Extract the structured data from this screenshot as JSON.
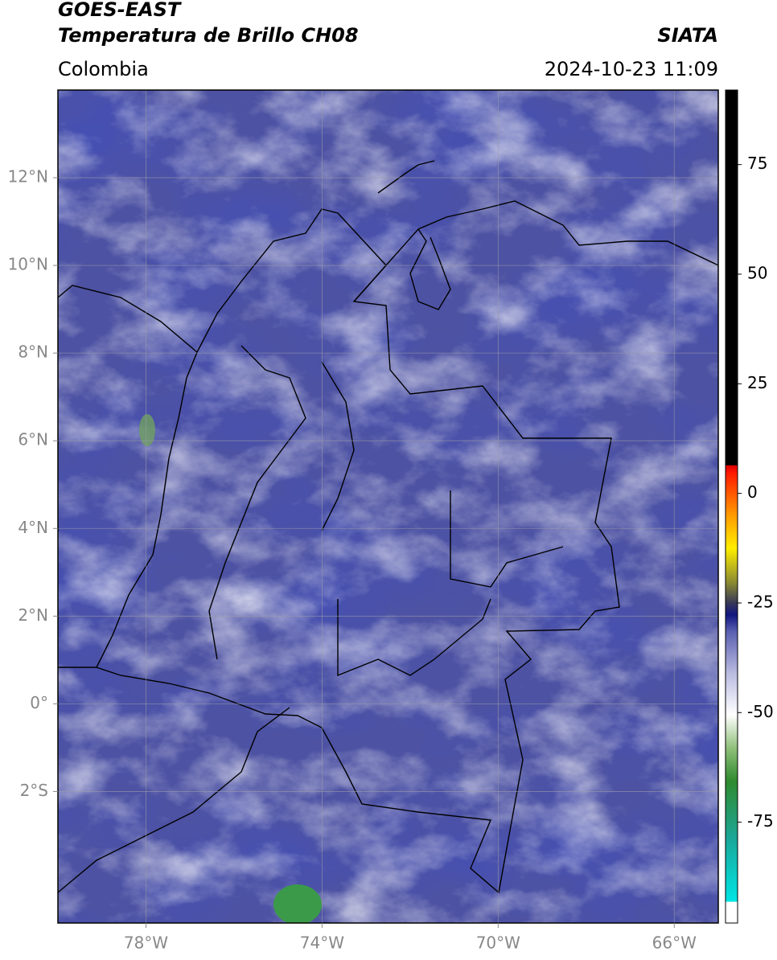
{
  "header": {
    "title_line1": "GOES-EAST",
    "title_line2": "Temperatura de Brillo CH08",
    "organization": "SIATA",
    "region": "Colombia",
    "datetime": "2024-10-23 11:09"
  },
  "map": {
    "lon_range": [
      -80,
      -65
    ],
    "lat_range": [
      -5,
      14
    ],
    "lon_ticks": [
      {
        "value": -78,
        "label": "78°W"
      },
      {
        "value": -74,
        "label": "74°W"
      },
      {
        "value": -70,
        "label": "70°W"
      },
      {
        "value": -66,
        "label": "66°W"
      }
    ],
    "lat_ticks": [
      {
        "value": 12,
        "label": "12°N"
      },
      {
        "value": 10,
        "label": "10°N"
      },
      {
        "value": 8,
        "label": "8°N"
      },
      {
        "value": 6,
        "label": "6°N"
      },
      {
        "value": 4,
        "label": "4°N"
      },
      {
        "value": 2,
        "label": "2°N"
      },
      {
        "value": 0,
        "label": "0°"
      },
      {
        "value": -2,
        "label": "2°S"
      }
    ]
  },
  "colorbar": {
    "range": [
      -98,
      92
    ],
    "ticks": [
      75,
      50,
      25,
      0,
      -25,
      -50,
      -75
    ]
  }
}
